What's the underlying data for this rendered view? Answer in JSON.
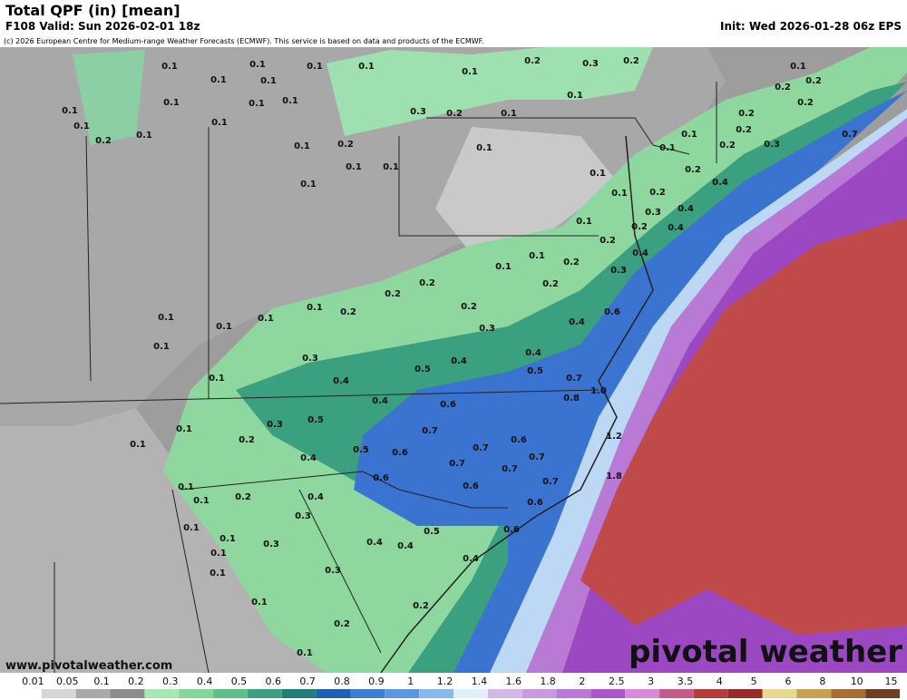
{
  "header": {
    "title": "Total QPF (in) [mean]",
    "valid": "F108 Valid: Sun 2026-02-01 18z",
    "init": "Init: Wed 2026-01-28 06z EPS",
    "credit": "(c) 2026 European Centre for Medium-range Weather Forecasts (ECMWF). This service is based on data and products of the ECMWF."
  },
  "footer": {
    "url": "www.pivotalweather.com",
    "brand": "pivotal weather"
  },
  "legend": {
    "labels": [
      "0.01",
      "0.05",
      "0.1",
      "0.2",
      "0.3",
      "0.4",
      "0.5",
      "0.6",
      "0.7",
      "0.8",
      "0.9",
      "1",
      "1.2",
      "1.4",
      "1.6",
      "1.8",
      "2",
      "2.5",
      "3",
      "3.5",
      "4",
      "5",
      "6",
      "8",
      "10",
      "15"
    ],
    "colors": [
      "#ffffff",
      "#d6d6d6",
      "#a9a9a9",
      "#8c8c8c",
      "#a6e8b4",
      "#82d69a",
      "#5cbf8a",
      "#3aa07f",
      "#1f7f78",
      "#1f5fb8",
      "#3a7fd6",
      "#5a99e0",
      "#88b8ec",
      "#dff0fb",
      "#d4b8e8",
      "#c79ae0",
      "#b97ad6",
      "#a858cc",
      "#d88ad8",
      "#c85a8a",
      "#b83a3a",
      "#9a2a2a",
      "#e8d890",
      "#c8a050",
      "#a87030",
      "#6a4020"
    ]
  },
  "map": {
    "labels": [
      "0.1",
      "0.1",
      "0.1",
      "0.1",
      "0.1",
      "0.1",
      "0.1",
      "0.1",
      "0.1",
      "0.1",
      "0.2",
      "0.1",
      "0.1",
      "0.1",
      "0.1",
      "0.1",
      "0.1",
      "0.2",
      "0.1",
      "0.3",
      "0.2",
      "0.1",
      "0.1",
      "0.2",
      "0.3",
      "0.2",
      "0.1",
      "0.1",
      "0.1",
      "0.1",
      "0.1",
      "0.1",
      "0.2",
      "0.2",
      "0.2",
      "0.3",
      "0.2",
      "0.1",
      "0.2",
      "0.2",
      "0.7",
      "0.2",
      "0.4",
      "0.2",
      "0.4",
      "0.3",
      "0.2",
      "0.4",
      "0.4",
      "0.2",
      "0.3",
      "0.2",
      "0.1",
      "0.1",
      "0.1",
      "0.2",
      "0.6",
      "0.4",
      "0.2",
      "0.2",
      "0.2",
      "0.1",
      "0.2",
      "0.3",
      "0.4",
      "0.5",
      "0.4",
      "0.5",
      "0.4",
      "0.3",
      "0.1",
      "0.1",
      "0.1",
      "0.1",
      "0.1",
      "0.4",
      "0.6",
      "0.7",
      "0.8",
      "1.0",
      "0.5",
      "0.3",
      "0.2",
      "0.4",
      "0.5",
      "0.7",
      "0.6",
      "0.7",
      "0.6",
      "0.7",
      "0.7",
      "0.7",
      "0.6",
      "0.6",
      "0.7",
      "1.2",
      "1.8",
      "0.1",
      "0.1",
      "0.1",
      "0.1",
      "0.2",
      "0.4",
      "0.3",
      "0.1",
      "0.1",
      "0.1",
      "0.1",
      "0.3",
      "0.4",
      "0.4",
      "0.5",
      "0.6",
      "0.6",
      "0.4",
      "0.3",
      "0.2",
      "0.1",
      "0.2",
      "0.1"
    ]
  }
}
